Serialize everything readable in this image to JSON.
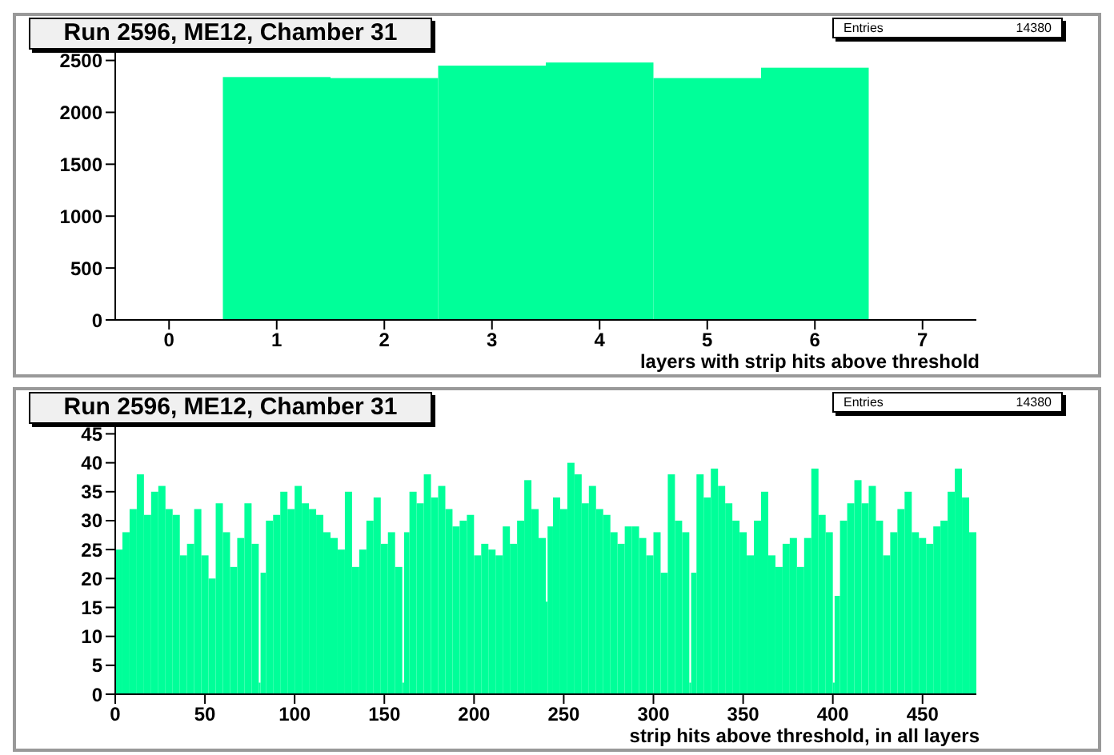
{
  "chart_data": [
    {
      "type": "histogram",
      "title": "Run 2596, ME12, Chamber 31",
      "xlabel": "layers with strip hits above threshold",
      "annotations": [
        "Entries",
        "14380"
      ],
      "color": "#00ff99",
      "bins": [
        0.5,
        1.5,
        2.5,
        3.5,
        4.5,
        5.5,
        6.5
      ],
      "values": [
        2340,
        2330,
        2450,
        2480,
        2330,
        2430
      ],
      "xlim": [
        -0.5,
        7.5
      ],
      "xticks": [
        0,
        1,
        2,
        3,
        4,
        5,
        6,
        7
      ],
      "ylim": [
        0,
        2620
      ],
      "yticks": [
        0,
        500,
        1000,
        1500,
        2000,
        2500
      ]
    },
    {
      "type": "histogram",
      "title": "Run 2596, ME12, Chamber 31",
      "xlabel": "strip hits above threshold, in all layers",
      "annotations": [
        "Entries",
        "14380"
      ],
      "color": "#00ff99",
      "bins": [
        0,
        4,
        8,
        12,
        16,
        20,
        24,
        28,
        32,
        36,
        40,
        44,
        48,
        52,
        56,
        60,
        64,
        68,
        72,
        76,
        80,
        81,
        84,
        88,
        92,
        96,
        100,
        104,
        108,
        112,
        116,
        120,
        124,
        128,
        132,
        136,
        140,
        144,
        148,
        152,
        156,
        160,
        161,
        164,
        168,
        172,
        176,
        180,
        184,
        188,
        192,
        196,
        200,
        204,
        208,
        212,
        216,
        220,
        224,
        228,
        232,
        236,
        240,
        241,
        244,
        248,
        252,
        256,
        260,
        264,
        268,
        272,
        276,
        280,
        284,
        288,
        292,
        296,
        300,
        304,
        308,
        312,
        316,
        320,
        321,
        324,
        328,
        332,
        336,
        340,
        344,
        348,
        352,
        356,
        360,
        364,
        368,
        372,
        376,
        380,
        384,
        388,
        392,
        396,
        400,
        401,
        404,
        408,
        412,
        416,
        420,
        424,
        428,
        432,
        436,
        440,
        444,
        448,
        452,
        456,
        460,
        464,
        468,
        472,
        476,
        480
      ],
      "values": [
        25,
        28,
        32,
        38,
        31,
        35,
        36,
        32,
        31,
        24,
        26,
        32,
        24,
        20,
        33,
        28,
        22,
        27,
        33,
        26,
        2,
        21,
        30,
        31,
        35,
        32,
        36,
        33,
        32,
        31,
        28,
        27,
        25,
        35,
        22,
        25,
        30,
        34,
        26,
        28,
        22,
        2,
        28,
        35,
        33,
        38,
        34,
        36,
        32,
        29,
        30,
        31,
        24,
        26,
        25,
        24,
        29,
        26,
        30,
        37,
        32,
        27,
        16,
        29,
        34,
        32,
        40,
        38,
        33,
        36,
        32,
        31,
        28,
        26,
        29,
        29,
        27,
        24,
        28,
        21,
        38,
        30,
        28,
        2,
        21,
        38,
        34,
        39,
        36,
        33,
        30,
        28,
        24,
        30,
        35,
        24,
        22,
        26,
        27,
        22,
        27,
        39,
        31,
        28,
        2,
        17,
        30,
        33,
        37,
        33,
        36,
        30,
        24,
        28,
        32,
        35,
        28,
        27,
        26,
        29,
        30,
        35,
        39,
        34,
        28
      ],
      "xlim": [
        0,
        480
      ],
      "xticks": [
        0,
        50,
        100,
        150,
        200,
        250,
        300,
        350,
        400,
        450
      ],
      "ylim": [
        0,
        47
      ],
      "yticks": [
        0,
        5,
        10,
        15,
        20,
        25,
        30,
        35,
        40,
        45
      ]
    }
  ]
}
